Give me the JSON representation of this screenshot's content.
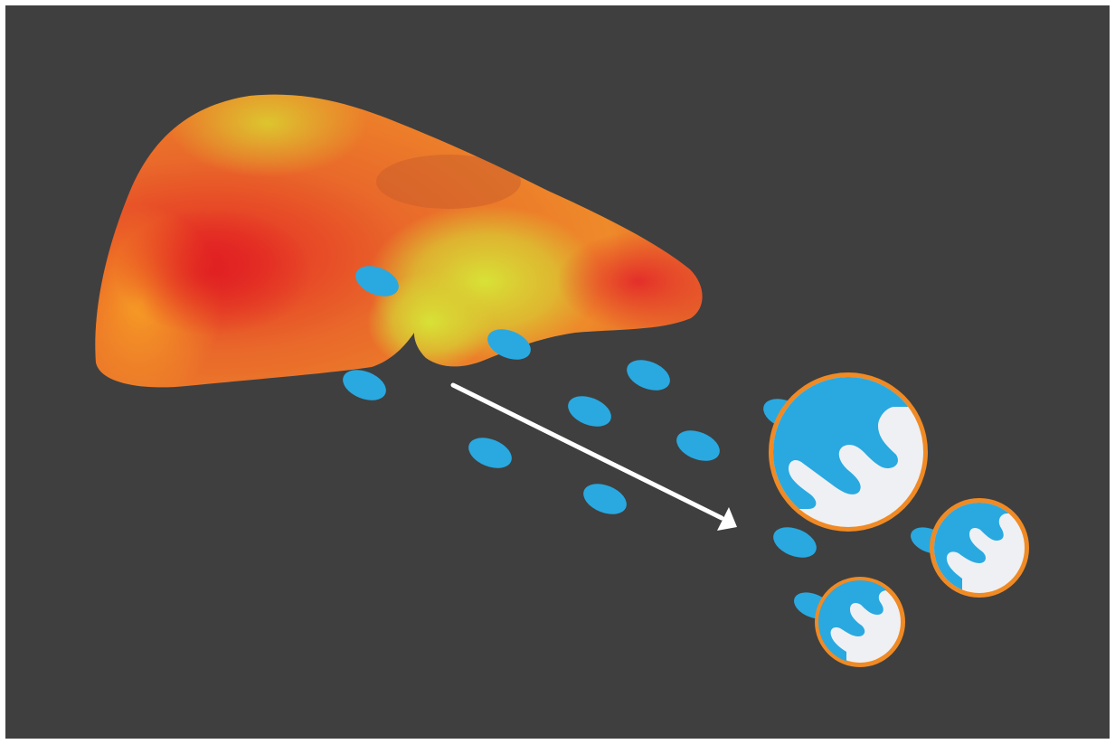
{
  "colors": {
    "background": "#3f3f3f",
    "frame": "#ffffff",
    "droplet": "#29a9e0",
    "cell_fill": "#eef0f3",
    "cell_rim": "#f08a24",
    "arrow": "#ffffff",
    "liver_gradient": [
      "#f5a021",
      "#e02a23",
      "#d6e033"
    ]
  },
  "icons": {
    "organ": "liver-icon",
    "droplet": "lipid-droplet-icon",
    "cell": "fat-laden-cell-icon",
    "arrow": "flow-arrow-icon"
  }
}
